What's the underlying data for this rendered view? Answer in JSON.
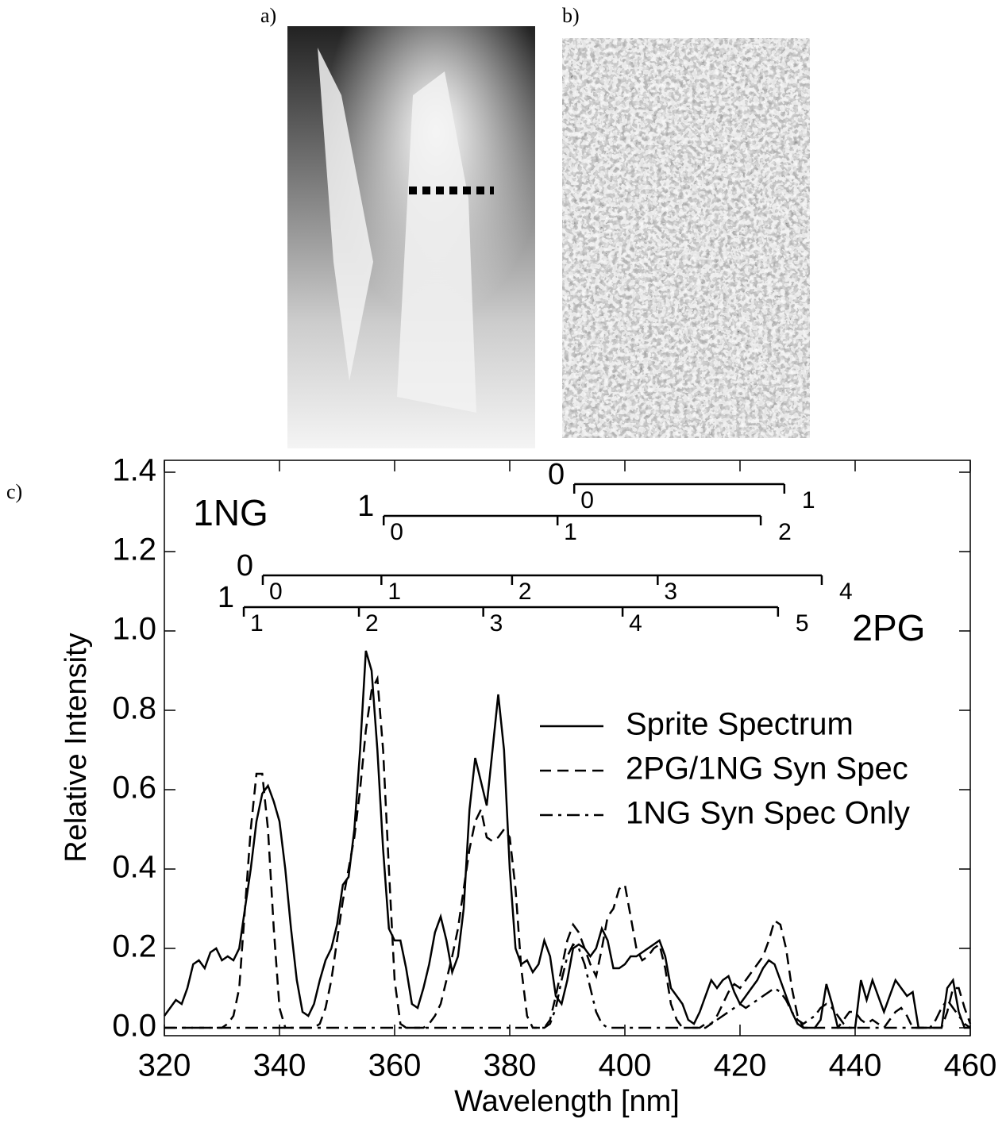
{
  "images": [
    {
      "label": "a)"
    },
    {
      "label": "b)"
    }
  ],
  "chart_data": {
    "type": "line",
    "panel_label": "c)",
    "x_label": "Wavelength [nm]",
    "y_label": "Relative Intensity",
    "xlim": [
      320,
      460
    ],
    "ylim": [
      -0.02,
      1.43
    ],
    "xticks": [
      320,
      340,
      360,
      380,
      400,
      420,
      440,
      460
    ],
    "yticks": [
      {
        "value": 0,
        "label": "0.0"
      },
      0.2,
      0.4,
      0.6,
      0.8,
      {
        "value": 1,
        "label": "1.0"
      },
      1.2,
      1.4
    ],
    "legend": "upper right",
    "x": [
      320,
      321,
      322,
      323,
      324,
      325,
      326,
      327,
      328,
      329,
      330,
      331,
      332,
      333,
      334,
      335,
      336,
      337,
      338,
      339,
      340,
      341,
      342,
      343,
      344,
      345,
      346,
      347,
      348,
      349,
      350,
      351,
      352,
      353,
      354,
      355,
      356,
      357,
      358,
      359,
      360,
      361,
      362,
      363,
      364,
      365,
      366,
      367,
      368,
      369,
      370,
      371,
      372,
      373,
      374,
      375,
      376,
      377,
      378,
      379,
      380,
      381,
      382,
      383,
      384,
      385,
      386,
      387,
      388,
      389,
      390,
      391,
      392,
      393,
      394,
      395,
      396,
      397,
      398,
      399,
      400,
      401,
      402,
      403,
      404,
      405,
      406,
      407,
      408,
      409,
      410,
      411,
      412,
      413,
      414,
      415,
      416,
      417,
      418,
      419,
      420,
      421,
      422,
      423,
      424,
      425,
      426,
      427,
      428,
      429,
      430,
      431,
      432,
      433,
      434,
      435,
      436,
      437,
      438,
      439,
      440,
      441,
      442,
      443,
      444,
      445,
      446,
      447,
      448,
      449,
      450,
      451,
      452,
      453,
      454,
      455,
      456,
      457,
      458,
      459,
      460
    ],
    "series": [
      {
        "name": "Sprite Spectrum",
        "color": "#000000",
        "dash": "solid",
        "values": [
          0.03,
          0.05,
          0.07,
          0.06,
          0.1,
          0.16,
          0.17,
          0.15,
          0.19,
          0.2,
          0.17,
          0.18,
          0.17,
          0.2,
          0.3,
          0.4,
          0.52,
          0.59,
          0.61,
          0.57,
          0.52,
          0.4,
          0.25,
          0.12,
          0.04,
          0.03,
          0.06,
          0.12,
          0.17,
          0.2,
          0.26,
          0.36,
          0.38,
          0.5,
          0.7,
          0.95,
          0.9,
          0.7,
          0.45,
          0.25,
          0.22,
          0.22,
          0.15,
          0.06,
          0.05,
          0.1,
          0.16,
          0.24,
          0.28,
          0.22,
          0.14,
          0.18,
          0.3,
          0.55,
          0.68,
          0.62,
          0.56,
          0.7,
          0.84,
          0.7,
          0.4,
          0.2,
          0.16,
          0.17,
          0.14,
          0.16,
          0.22,
          0.18,
          0.08,
          0.06,
          0.12,
          0.2,
          0.21,
          0.2,
          0.18,
          0.2,
          0.25,
          0.22,
          0.15,
          0.15,
          0.16,
          0.18,
          0.18,
          0.19,
          0.2,
          0.21,
          0.22,
          0.18,
          0.1,
          0.08,
          0.06,
          0.02,
          0.01,
          0.04,
          0.08,
          0.12,
          0.1,
          0.12,
          0.13,
          0.09,
          0.06,
          0.08,
          0.1,
          0.12,
          0.15,
          0.17,
          0.16,
          0.12,
          0.08,
          0.04,
          0.01,
          0,
          0,
          0,
          0.02,
          0.11,
          0.06,
          0,
          0,
          0,
          0,
          0.12,
          0.07,
          0.12,
          0.08,
          0.04,
          0.08,
          0.12,
          0.1,
          0.08,
          0.09,
          0,
          0,
          0,
          0,
          0,
          0.1,
          0.12,
          0.04,
          0,
          0
        ]
      },
      {
        "name": "2PG/1NG Syn Spec",
        "color": "#000000",
        "dash": "dashed",
        "values": [
          0,
          0,
          0,
          0,
          0,
          0,
          0,
          0,
          0,
          0,
          0,
          0.01,
          0.03,
          0.1,
          0.3,
          0.5,
          0.64,
          0.64,
          0.5,
          0.25,
          0.05,
          0,
          0,
          0,
          0,
          0,
          0,
          0.01,
          0.05,
          0.12,
          0.22,
          0.32,
          0.4,
          0.48,
          0.6,
          0.75,
          0.85,
          0.88,
          0.7,
          0.4,
          0.12,
          0.01,
          0,
          0,
          0,
          0,
          0.01,
          0.03,
          0.06,
          0.12,
          0.18,
          0.25,
          0.35,
          0.45,
          0.52,
          0.55,
          0.48,
          0.47,
          0.48,
          0.5,
          0.48,
          0.35,
          0.15,
          0.03,
          0,
          0,
          0,
          0.02,
          0.08,
          0.15,
          0.22,
          0.26,
          0.24,
          0.2,
          0.16,
          0.13,
          0.2,
          0.28,
          0.3,
          0.35,
          0.36,
          0.28,
          0.2,
          0.17,
          0.18,
          0.2,
          0.21,
          0.15,
          0.06,
          0.02,
          0,
          0,
          0,
          0,
          0,
          0.01,
          0.03,
          0.06,
          0.09,
          0.11,
          0.1,
          0.12,
          0.14,
          0.16,
          0.18,
          0.22,
          0.27,
          0.26,
          0.2,
          0.1,
          0.03,
          0,
          0,
          0,
          0,
          0,
          0,
          0,
          0.02,
          0.04,
          0.04,
          0.02,
          0.01,
          0.02,
          0.01,
          0,
          0.02,
          0.04,
          0.05,
          0.03,
          0,
          0,
          0,
          0,
          0,
          0,
          0.04,
          0.1,
          0.1,
          0.05,
          0.01
        ]
      },
      {
        "name": "1NG Syn Spec Only",
        "color": "#000000",
        "dash": "dashdot",
        "values": [
          0,
          0,
          0,
          0,
          0,
          0,
          0,
          0,
          0,
          0,
          0,
          0,
          0,
          0,
          0,
          0,
          0,
          0,
          0,
          0,
          0,
          0,
          0,
          0,
          0,
          0,
          0,
          0,
          0,
          0,
          0,
          0,
          0,
          0,
          0,
          0,
          0,
          0,
          0,
          0,
          0,
          0,
          0,
          0,
          0,
          0,
          0,
          0,
          0,
          0,
          0,
          0,
          0,
          0,
          0,
          0,
          0,
          0,
          0,
          0,
          0,
          0,
          0,
          0,
          0,
          0,
          0,
          0.01,
          0.05,
          0.12,
          0.18,
          0.21,
          0.2,
          0.16,
          0.1,
          0.04,
          0.01,
          0,
          0,
          0,
          0,
          0,
          0,
          0,
          0,
          0,
          0,
          0,
          0,
          0,
          0,
          0,
          0,
          0,
          0.01,
          0.01,
          0.02,
          0.03,
          0.04,
          0.05,
          0.06,
          0.05,
          0.06,
          0.07,
          0.08,
          0.09,
          0.1,
          0.09,
          0.07,
          0.04,
          0.02,
          0.01,
          0.02,
          0.03,
          0.05,
          0.06,
          0.05,
          0.03,
          0.01,
          0,
          0,
          0,
          0,
          0,
          0,
          0,
          0,
          0,
          0,
          0,
          0,
          0,
          0,
          0,
          0.02,
          0.05,
          0.07,
          0.05,
          0.03,
          0.01,
          0
        ]
      }
    ],
    "band_labels": [
      {
        "text": "1NG",
        "x": 325,
        "y": 1.29
      },
      {
        "text": "2PG",
        "x": 439.5,
        "y": 1.0
      }
    ],
    "ladders": [
      {
        "upper": "0",
        "y": 1.37,
        "ticks": [
          391.2,
          427.7
        ],
        "labels": [
          "0",
          "1"
        ]
      },
      {
        "upper": "1",
        "y": 1.29,
        "ticks": [
          358.1,
          388.3,
          423.6
        ],
        "labels": [
          "0",
          "1",
          "2"
        ]
      },
      {
        "upper": "0",
        "y": 1.14,
        "ticks": [
          337.1,
          357.7,
          380.4,
          405.7,
          434.2
        ],
        "labels": [
          "0",
          "1",
          "2",
          "3",
          "4"
        ]
      },
      {
        "upper": "1",
        "y": 1.06,
        "ticks": [
          333.8,
          353.8,
          375.4,
          399.6,
          426.6
        ],
        "labels": [
          "1",
          "2",
          "3",
          "4",
          "5"
        ]
      }
    ]
  }
}
